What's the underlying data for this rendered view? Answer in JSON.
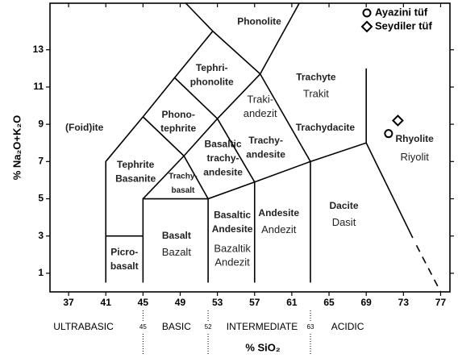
{
  "chart_data": {
    "type": "scatter",
    "xlabel": "% SiO₂",
    "ylabel": "% Na₂O+K₂O",
    "xlim": [
      35,
      78
    ],
    "ylim": [
      0,
      15.5
    ],
    "xticks": [
      37,
      41,
      45,
      49,
      53,
      57,
      61,
      65,
      69,
      73,
      77
    ],
    "yticks": [
      1,
      3,
      5,
      7,
      9,
      11,
      13
    ],
    "series": [
      {
        "name": "Ayazini tüf",
        "marker": "circle",
        "color": "#000000",
        "x": [
          71.4
        ],
        "values": [
          8.5
        ]
      },
      {
        "name": "Seydiler tüf",
        "marker": "diamond",
        "color": "#000000",
        "x": [
          72.4
        ],
        "values": [
          9.2
        ]
      }
    ],
    "fields": [
      {
        "en": [
          "Phonolite"
        ]
      },
      {
        "en": [
          "Tephri-",
          "phonolite"
        ]
      },
      {
        "en": [
          "Phono-",
          "tephrite"
        ]
      },
      {
        "en": [
          "(Foid)ite"
        ]
      },
      {
        "en": [
          "Tephrite",
          "Basanite"
        ]
      },
      {
        "en": [
          "Trachy-",
          "basalt"
        ]
      },
      {
        "en": [
          "Basaltic",
          "trachy-",
          "andesite"
        ]
      },
      {
        "en": [
          "Trachy-",
          "andesite"
        ],
        "tr": [
          "Traki-",
          "andezit"
        ]
      },
      {
        "en": [
          "Trachyte"
        ],
        "tr": [
          "Trakit"
        ]
      },
      {
        "en": [
          "Trachydacite"
        ]
      },
      {
        "en": [
          "Rhyolite"
        ],
        "tr": [
          "Riyolit"
        ]
      },
      {
        "en": [
          "Dacite"
        ],
        "tr": [
          "Dasit"
        ]
      },
      {
        "en": [
          "Andesite"
        ],
        "tr": [
          "Andezit"
        ]
      },
      {
        "en": [
          "Basaltic",
          "Andesite"
        ],
        "tr": [
          "Bazaltik",
          "Andezit"
        ]
      },
      {
        "en": [
          "Basalt"
        ],
        "tr": [
          "Bazalt"
        ]
      },
      {
        "en": [
          "Picro-",
          "basalt"
        ]
      }
    ],
    "classes": [
      "ULTRABASIC",
      "BASIC",
      "INTERMEDIATE",
      "ACIDIC"
    ],
    "class_bounds": [
      45,
      52,
      63
    ]
  }
}
